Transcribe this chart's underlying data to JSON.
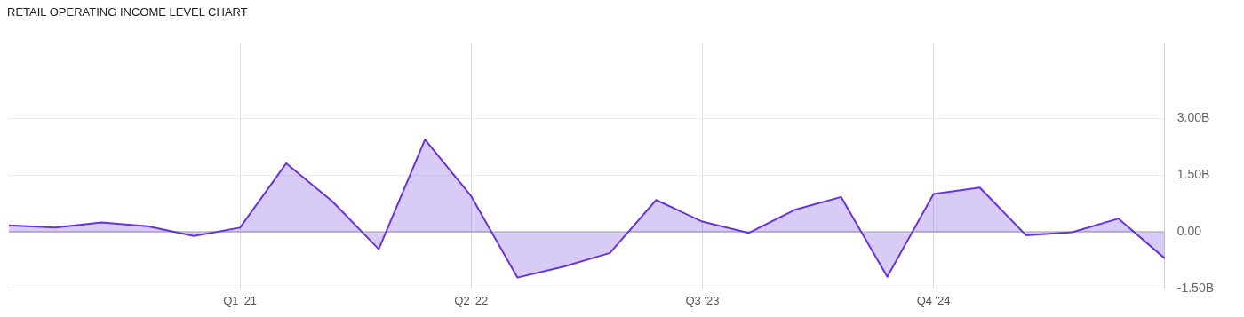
{
  "chart_data": {
    "type": "area",
    "title": "RETAIL OPERATING INCOME LEVEL CHART",
    "categories": [
      null,
      null,
      null,
      null,
      null,
      "Q1 '21",
      null,
      null,
      null,
      null,
      "Q2 '22",
      null,
      null,
      null,
      null,
      "Q3 '23",
      null,
      null,
      null,
      null,
      "Q4 '24",
      null,
      null,
      null,
      null,
      null
    ],
    "series": [
      {
        "color": "#6a35d8",
        "values": [
          0.18,
          0.12,
          0.26,
          0.16,
          -0.1,
          0.12,
          1.82,
          0.81,
          -0.45,
          2.45,
          0.95,
          -1.2,
          -0.91,
          -0.55,
          0.85,
          0.28,
          -0.02,
          0.59,
          0.93,
          -1.18,
          1.01,
          1.18,
          -0.08,
          0.0,
          0.36,
          -0.69
        ]
      }
    ],
    "ylim": [
      -1.5,
      5
    ],
    "yticks": [
      {
        "value": -1.5,
        "label": "-1.50B"
      },
      {
        "value": 0,
        "label": "0.00"
      },
      {
        "value": 1.5,
        "label": "1.50B"
      },
      {
        "value": 3,
        "label": "3.00B"
      }
    ],
    "grid": true,
    "legend": false
  }
}
